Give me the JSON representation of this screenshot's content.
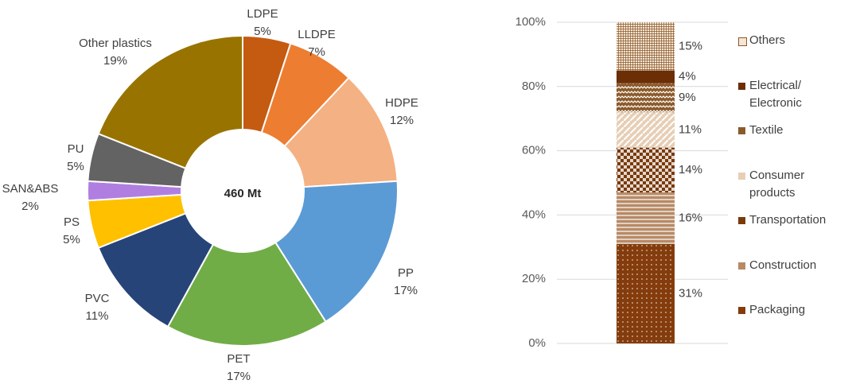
{
  "chart_data": [
    {
      "type": "donut",
      "categories": [
        "LDPE",
        "LLDPE",
        "HDPE",
        "PP",
        "PET",
        "PVC",
        "PS",
        "SAN&ABS",
        "PU",
        "Other plastics"
      ],
      "values": [
        5,
        7,
        12,
        17,
        17,
        11,
        5,
        2,
        5,
        19
      ],
      "value_labels": [
        "5%",
        "7%",
        "12%",
        "17%",
        "17%",
        "11%",
        "5%",
        "2%",
        "5%",
        "19%"
      ],
      "colors": [
        "#c55a11",
        "#ed7d31",
        "#f4b183",
        "#5b9bd5",
        "#70ad47",
        "#264478",
        "#ffc000",
        "#b07ee0",
        "#636363",
        "#997300"
      ],
      "center_label": "460 Mt"
    },
    {
      "type": "stacked_bar",
      "categories": [
        null
      ],
      "series": [
        {
          "name": "Packaging",
          "color": "#843c0c",
          "values": [
            31
          ],
          "value_labels": [
            "31%"
          ]
        },
        {
          "name": "Construction",
          "color": "#b78a66",
          "values": [
            16
          ],
          "value_labels": [
            "16%"
          ]
        },
        {
          "name": "Transportation",
          "color": "#7a3a0a",
          "values": [
            14
          ],
          "value_labels": [
            "14%"
          ]
        },
        {
          "name": "Consumer products",
          "color": "#e6cfb6",
          "values": [
            11
          ],
          "value_labels": [
            "11%"
          ]
        },
        {
          "name": "Textile",
          "color": "#8b5a2b",
          "values": [
            9
          ],
          "value_labels": [
            "9%"
          ]
        },
        {
          "name": "Electrical/ Electronic",
          "color": "#6b2e05",
          "values": [
            4
          ],
          "value_labels": [
            "4%"
          ]
        },
        {
          "name": "Others",
          "color": "#f5e6d6",
          "values": [
            15
          ],
          "value_labels": [
            "15%"
          ]
        }
      ],
      "ylim": [
        0,
        100
      ],
      "yticks": [
        {
          "value": 0,
          "label": "0%"
        },
        {
          "value": 20,
          "label": "20%"
        },
        {
          "value": 40,
          "label": "40%"
        },
        {
          "value": 60,
          "label": "60%"
        },
        {
          "value": 80,
          "label": "80%"
        },
        {
          "value": 100,
          "label": "100%"
        }
      ],
      "grid": true,
      "legend": "right"
    }
  ]
}
